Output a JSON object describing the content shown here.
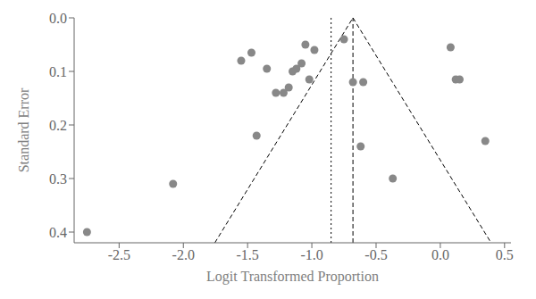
{
  "chart_data": {
    "type": "scatter",
    "xlabel": "Logit Transformed Proportion",
    "ylabel": "Standard Error",
    "xlim": [
      -2.85,
      0.55
    ],
    "ylim": [
      0.42,
      0.0
    ],
    "xticks": [
      -2.5,
      {
        "value": -2.0,
        "label": "-2.0"
      },
      -1.5,
      {
        "value": -1.0,
        "label": "-1.0"
      },
      -0.5,
      {
        "value": 0.0,
        "label": "0.0"
      },
      0.5
    ],
    "yticks": [
      {
        "value": 0.0,
        "label": "0.0"
      },
      0.1,
      0.2,
      0.3,
      0.4
    ],
    "grid": false,
    "series": [
      {
        "type": "scatter",
        "color": "#888888",
        "marker": "circle",
        "x": [
          -2.75,
          -2.08,
          -1.55,
          -1.47,
          -1.43,
          -1.35,
          -1.28,
          -1.22,
          -1.18,
          -1.15,
          -1.12,
          -1.08,
          -1.05,
          -1.02,
          -0.98,
          -0.75,
          -0.68,
          -0.62,
          -0.6,
          -0.37,
          0.08,
          0.12,
          0.15,
          0.35
        ],
        "values": [
          0.4,
          0.31,
          0.08,
          0.065,
          0.22,
          0.095,
          0.14,
          0.14,
          0.13,
          0.1,
          0.095,
          0.085,
          0.05,
          0.115,
          0.06,
          0.04,
          0.12,
          0.24,
          0.12,
          0.3,
          0.055,
          0.115,
          0.115,
          0.23
        ]
      },
      {
        "type": "line",
        "color": "#000000",
        "line_style": "dashed",
        "x": [
          -1.755,
          -0.68,
          0.395
        ],
        "values": [
          0.42,
          0.0,
          0.42
        ]
      }
    ],
    "reference_lines": [
      {
        "x": -0.85,
        "line_style": "dotted",
        "color": "#000000"
      },
      {
        "x": -0.68,
        "line_style": "dashed",
        "color": "#000000"
      }
    ]
  }
}
